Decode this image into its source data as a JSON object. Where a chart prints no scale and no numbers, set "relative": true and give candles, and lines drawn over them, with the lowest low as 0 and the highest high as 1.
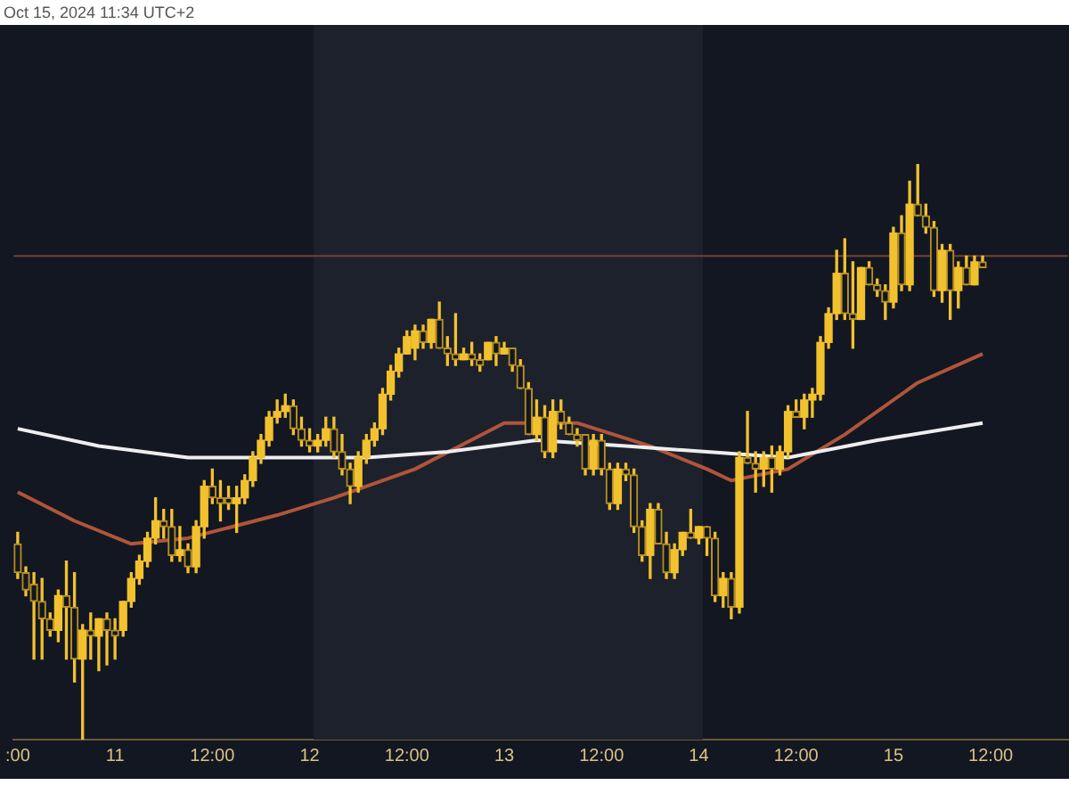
{
  "chart_data": {
    "type": "candlestick",
    "relative": true,
    "legend": false,
    "tick_labels": "x",
    "color": "#f2c12e",
    "colors": [
      "#b8901f",
      "#b8901f",
      "#b8901f",
      "#b8901f",
      "#b8901f",
      "#f2c12e",
      "#b8901f",
      "#b8901f",
      "#f2c12e",
      "#b8901f",
      "#f2c12e",
      "#b8901f",
      "#b8901f",
      "#f2c12e",
      "#f2c12e",
      "#f2c12e",
      "#f2c12e",
      "#f2c12e",
      "#b8901f",
      "#b8901f",
      "#f2c12e",
      "#b8901f",
      "#f2c12e",
      "#f2c12e",
      "#b8901f",
      "#b8901f",
      "#b8901f",
      "#f2c12e",
      "#f2c12e",
      "#f2c12e",
      "#f2c12e",
      "#f2c12e",
      "#f2c12e",
      "#f2c12e",
      "#b8901f",
      "#b8901f",
      "#b8901f",
      "#f2c12e",
      "#f2c12e",
      "#b8901f",
      "#b8901f",
      "#b8901f",
      "#f2c12e",
      "#f2c12e",
      "#f2c12e",
      "#f2c12e",
      "#f2c12e",
      "#f2c12e",
      "#f2c12e",
      "#f2c12e",
      "#b8901f",
      "#f2c12e",
      "#b8901f",
      "#b8901f",
      "#b8901f",
      "#f2c12e",
      "#b8901f",
      "#b8901f",
      "#f2c12e",
      "#b8901f",
      "#f2c12e",
      "#b8901f",
      "#b8901f",
      "#b8901f",
      "#f2c12e",
      "#b8901f",
      "#f2c12e",
      "#b8901f",
      "#b8901f",
      "#b8901f",
      "#b8901f",
      "#f2c12e",
      "#b8901f",
      "#b8901f",
      "#f2c12e",
      "#b8901f",
      "#b8901f",
      "#b8901f",
      "#f2c12e",
      "#b8901f",
      "#b8901f",
      "#f2c12e",
      "#f2c12e",
      "#b8901f",
      "#f2c12e",
      "#b8901f",
      "#b8901f",
      "#f2c12e",
      "#b8901f",
      "#f2c12e",
      "#b8901f",
      "#b8901f",
      "#f2c12e",
      "#b8901f",
      "#f2c12e",
      "#f2c12e",
      "#b8901f",
      "#f2c12e",
      "#f2c12e",
      "#f2c12e",
      "#f2c12e",
      "#f2c12e",
      "#b8901f",
      "#b8901f",
      "#f2c12e",
      "#b8901f",
      "#b8901f",
      "#b8901f",
      "#f2c12e",
      "#b8901f",
      "#f2c12e",
      "#b8901f",
      "#b8901f",
      "#b8901f",
      "#f2c12e",
      "#b8901f",
      "#f2c12e",
      "#b8901f",
      "#f2c12e",
      "#b8901f",
      null,
      null,
      null,
      null,
      null,
      null,
      null,
      null,
      null,
      null
    ],
    "annotations": [
      "Oct 15, 2024 11:34 UTC+2"
    ],
    "categories": [
      ":00",
      null,
      null,
      null,
      null,
      null,
      null,
      null,
      null,
      null,
      null,
      null,
      "11",
      null,
      null,
      null,
      null,
      null,
      null,
      null,
      null,
      null,
      null,
      null,
      "12:00",
      null,
      null,
      null,
      null,
      null,
      null,
      null,
      null,
      null,
      null,
      null,
      "12",
      null,
      null,
      null,
      null,
      null,
      null,
      null,
      null,
      null,
      null,
      null,
      "12:00",
      null,
      null,
      null,
      null,
      null,
      null,
      null,
      null,
      null,
      null,
      null,
      "13",
      null,
      null,
      null,
      null,
      null,
      null,
      null,
      null,
      null,
      null,
      null,
      "12:00",
      null,
      null,
      null,
      null,
      null,
      null,
      null,
      null,
      null,
      null,
      null,
      "14",
      null,
      null,
      null,
      null,
      null,
      null,
      null,
      null,
      null,
      null,
      null,
      "12:00",
      null,
      null,
      null,
      null,
      null,
      null,
      null,
      null,
      null,
      null,
      null,
      "15",
      null,
      null,
      null,
      null,
      null,
      null,
      null,
      null,
      null,
      null,
      null,
      "12:00",
      null,
      null,
      null,
      null,
      null,
      null,
      null,
      null,
      null
    ],
    "ohlc": [
      [
        0.34,
        0.36,
        0.28,
        0.29
      ],
      [
        0.29,
        0.3,
        0.25,
        0.26
      ],
      [
        0.27,
        0.29,
        0.14,
        0.24
      ],
      [
        0.24,
        0.28,
        0.14,
        0.21
      ],
      [
        0.21,
        0.22,
        0.18,
        0.19
      ],
      [
        0.19,
        0.26,
        0.17,
        0.25
      ],
      [
        0.25,
        0.31,
        0.14,
        0.23
      ],
      [
        0.23,
        0.29,
        0.1,
        0.14
      ],
      [
        0.14,
        0.2,
        0,
        0.19
      ],
      [
        0.19,
        0.22,
        0.14,
        0.18
      ],
      [
        0.18,
        0.21,
        0.12,
        0.21
      ],
      [
        0.21,
        0.22,
        0.13,
        0.19
      ],
      [
        0.19,
        0.21,
        0.14,
        0.18
      ],
      [
        0.19,
        0.24,
        0.18,
        0.24
      ],
      [
        0.24,
        0.29,
        0.23,
        0.28
      ],
      [
        0.28,
        0.32,
        0.27,
        0.31
      ],
      [
        0.31,
        0.36,
        0.3,
        0.35
      ],
      [
        0.35,
        0.42,
        0.34,
        0.38
      ],
      [
        0.38,
        0.4,
        0.35,
        0.37
      ],
      [
        0.37,
        0.4,
        0.31,
        0.32
      ],
      [
        0.32,
        0.37,
        0.31,
        0.33
      ],
      [
        0.33,
        0.34,
        0.29,
        0.3
      ],
      [
        0.3,
        0.38,
        0.29,
        0.37
      ],
      [
        0.37,
        0.45,
        0.35,
        0.44
      ],
      [
        0.44,
        0.47,
        0.41,
        0.42
      ],
      [
        0.42,
        0.45,
        0.38,
        0.41
      ],
      [
        0.42,
        0.44,
        0.4,
        0.41
      ],
      [
        0.41,
        0.44,
        0.36,
        0.42
      ],
      [
        0.42,
        0.46,
        0.41,
        0.45
      ],
      [
        0.45,
        0.5,
        0.44,
        0.49
      ],
      [
        0.49,
        0.53,
        0.48,
        0.52
      ],
      [
        0.52,
        0.57,
        0.51,
        0.56
      ],
      [
        0.56,
        0.59,
        0.55,
        0.57
      ],
      [
        0.57,
        0.6,
        0.56,
        0.58
      ],
      [
        0.58,
        0.59,
        0.53,
        0.54
      ],
      [
        0.54,
        0.56,
        0.51,
        0.52
      ],
      [
        0.52,
        0.54,
        0.5,
        0.51
      ],
      [
        0.51,
        0.53,
        0.5,
        0.52
      ],
      [
        0.52,
        0.56,
        0.51,
        0.54
      ],
      [
        0.54,
        0.56,
        0.49,
        0.5
      ],
      [
        0.5,
        0.53,
        0.46,
        0.47
      ],
      [
        0.47,
        0.48,
        0.41,
        0.44
      ],
      [
        0.44,
        0.5,
        0.43,
        0.49
      ],
      [
        0.49,
        0.53,
        0.48,
        0.52
      ],
      [
        0.52,
        0.55,
        0.51,
        0.54
      ],
      [
        0.54,
        0.61,
        0.53,
        0.6
      ],
      [
        0.6,
        0.65,
        0.59,
        0.64
      ],
      [
        0.64,
        0.68,
        0.63,
        0.67
      ],
      [
        0.67,
        0.71,
        0.67,
        0.7
      ],
      [
        0.68,
        0.72,
        0.66,
        0.71
      ],
      [
        0.71,
        0.72,
        0.68,
        0.69
      ],
      [
        0.69,
        0.73,
        0.68,
        0.73
      ],
      [
        0.73,
        0.76,
        0.68,
        0.68
      ],
      [
        0.68,
        0.7,
        0.65,
        0.67
      ],
      [
        0.67,
        0.74,
        0.65,
        0.66
      ],
      [
        0.66,
        0.68,
        0.66,
        0.67
      ],
      [
        0.67,
        0.69,
        0.65,
        0.66
      ],
      [
        0.66,
        0.67,
        0.64,
        0.65
      ],
      [
        0.66,
        0.69,
        0.66,
        0.69
      ],
      [
        0.69,
        0.7,
        0.65,
        0.67
      ],
      [
        0.67,
        0.69,
        0.67,
        0.68
      ],
      [
        0.68,
        0.68,
        0.64,
        0.65
      ],
      [
        0.65,
        0.66,
        0.61,
        0.61
      ],
      [
        0.61,
        0.62,
        0.53,
        0.53
      ],
      [
        0.53,
        0.59,
        0.52,
        0.56
      ],
      [
        0.56,
        0.58,
        0.49,
        0.5
      ],
      [
        0.5,
        0.59,
        0.49,
        0.57
      ],
      [
        0.57,
        0.59,
        0.54,
        0.55
      ],
      [
        0.55,
        0.56,
        0.53,
        0.53
      ],
      [
        0.53,
        0.54,
        0.51,
        0.52
      ],
      [
        0.53,
        0.53,
        0.46,
        0.47
      ],
      [
        0.47,
        0.53,
        0.46,
        0.52
      ],
      [
        0.52,
        0.53,
        0.46,
        0.47
      ],
      [
        0.47,
        0.48,
        0.4,
        0.41
      ],
      [
        0.41,
        0.48,
        0.4,
        0.47
      ],
      [
        0.47,
        0.48,
        0.45,
        0.46
      ],
      [
        0.46,
        0.47,
        0.36,
        0.37
      ],
      [
        0.37,
        0.38,
        0.31,
        0.32
      ],
      [
        0.32,
        0.41,
        0.28,
        0.4
      ],
      [
        0.4,
        0.41,
        0.34,
        0.34
      ],
      [
        0.34,
        0.36,
        0.28,
        0.29
      ],
      [
        0.29,
        0.34,
        0.28,
        0.33
      ],
      [
        0.33,
        0.36,
        0.32,
        0.36
      ],
      [
        0.36,
        0.4,
        0.35,
        0.35
      ],
      [
        0.35,
        0.37,
        0.34,
        0.37
      ],
      [
        0.37,
        0.37,
        0.32,
        0.35
      ],
      [
        0.35,
        0.36,
        0.24,
        0.25
      ],
      [
        0.25,
        0.29,
        0.23,
        0.28
      ],
      [
        0.28,
        0.29,
        0.21,
        0.23
      ],
      [
        0.23,
        0.5,
        0.22,
        0.49
      ],
      [
        0.49,
        0.57,
        0.48,
        0.48
      ],
      [
        0.48,
        0.5,
        0.43,
        0.47
      ],
      [
        0.47,
        0.5,
        0.44,
        0.49
      ],
      [
        0.49,
        0.51,
        0.43,
        0.47
      ],
      [
        0.47,
        0.51,
        0.46,
        0.5
      ],
      [
        0.5,
        0.58,
        0.49,
        0.57
      ],
      [
        0.57,
        0.59,
        0.56,
        0.56
      ],
      [
        0.56,
        0.6,
        0.54,
        0.59
      ],
      [
        0.59,
        0.61,
        0.56,
        0.6
      ],
      [
        0.6,
        0.7,
        0.59,
        0.69
      ],
      [
        0.69,
        0.75,
        0.68,
        0.74
      ],
      [
        0.74,
        0.85,
        0.73,
        0.81
      ],
      [
        0.81,
        0.87,
        0.73,
        0.74
      ],
      [
        0.74,
        0.83,
        0.68,
        0.73
      ],
      [
        0.73,
        0.82,
        0.73,
        0.82
      ],
      [
        0.82,
        0.83,
        0.79,
        0.79
      ],
      [
        0.79,
        0.8,
        0.77,
        0.78
      ],
      [
        0.78,
        0.79,
        0.73,
        0.76
      ],
      [
        0.76,
        0.89,
        0.75,
        0.88
      ],
      [
        0.88,
        0.91,
        0.78,
        0.79
      ],
      [
        0.79,
        0.97,
        0.78,
        0.93
      ],
      [
        0.93,
        1,
        0.91,
        0.91
      ],
      [
        0.91,
        0.93,
        0.88,
        0.89
      ],
      [
        0.89,
        0.9,
        0.77,
        0.78
      ],
      [
        0.78,
        0.86,
        0.76,
        0.85
      ],
      [
        0.85,
        0.86,
        0.73,
        0.78
      ],
      [
        0.78,
        0.83,
        0.75,
        0.82
      ],
      [
        0.82,
        0.84,
        0.79,
        0.79
      ],
      [
        0.79,
        0.84,
        0.79,
        0.83
      ],
      [
        0.83,
        0.84,
        0.82,
        0.82
      ],
      null,
      null,
      null,
      null,
      null,
      null,
      null,
      null,
      null,
      null
    ],
    "series": [
      {
        "type": "line",
        "color": "#eeeeee",
        "values": [
          0.54,
          null,
          null,
          null,
          null,
          null,
          null,
          null,
          null,
          null,
          0.51,
          null,
          null,
          null,
          null,
          null,
          null,
          null,
          null,
          null,
          null,
          0.49,
          null,
          null,
          null,
          null,
          null,
          null,
          null,
          null,
          null,
          0.49,
          null,
          null,
          null,
          null,
          null,
          null,
          null,
          null,
          null,
          null,
          null,
          0.49,
          null,
          null,
          null,
          null,
          null,
          null,
          null,
          null,
          null,
          0.5,
          null,
          null,
          null,
          null,
          null,
          null,
          null,
          null,
          null,
          null,
          0.52,
          null,
          null,
          null,
          null,
          null,
          null,
          null,
          null,
          null,
          null,
          0.51,
          null,
          null,
          null,
          null,
          null,
          null,
          null,
          null,
          null,
          0.5,
          null,
          null,
          null,
          null,
          null,
          null,
          null,
          null,
          null,
          0.49,
          null,
          null,
          null,
          null,
          null,
          null,
          null,
          null,
          null,
          null,
          0.52,
          null,
          null,
          null,
          null,
          null,
          null,
          null,
          null,
          null,
          null,
          null,
          null,
          0.55,
          null,
          null,
          null,
          null,
          null,
          null,
          null,
          null,
          null,
          null
        ]
      },
      {
        "type": "line",
        "color": "#b0553a",
        "values": [
          0.43,
          null,
          null,
          null,
          null,
          null,
          null,
          0.38,
          null,
          null,
          null,
          null,
          null,
          null,
          0.34,
          null,
          null,
          null,
          null,
          null,
          null,
          0.35,
          null,
          null,
          null,
          null,
          null,
          null,
          null,
          null,
          null,
          null,
          0.39,
          null,
          null,
          null,
          null,
          null,
          null,
          0.42,
          null,
          null,
          null,
          null,
          null,
          null,
          null,
          null,
          null,
          0.47,
          null,
          null,
          null,
          null,
          null,
          null,
          null,
          null,
          null,
          null,
          0.55,
          null,
          null,
          null,
          null,
          null,
          null,
          null,
          null,
          0.55,
          null,
          null,
          null,
          null,
          null,
          null,
          null,
          null,
          0.51,
          null,
          null,
          null,
          null,
          null,
          null,
          0.47,
          null,
          null,
          0.45,
          null,
          null,
          null,
          null,
          null,
          null,
          0.47,
          null,
          null,
          null,
          null,
          null,
          null,
          0.53,
          null,
          null,
          null,
          null,
          null,
          null,
          null,
          null,
          0.62,
          null,
          null,
          null,
          null,
          null,
          null,
          null,
          0.67,
          null,
          null,
          null,
          null,
          null,
          null,
          null,
          null,
          null,
          null
        ]
      }
    ],
    "bands": [
      {
        "axis": "x",
        "from": "12",
        "to": "14",
        "color": "#1d212c"
      }
    ],
    "ref_lines": [
      {
        "axis": "y",
        "value": 0.84,
        "color": "#6e4436"
      }
    ]
  }
}
